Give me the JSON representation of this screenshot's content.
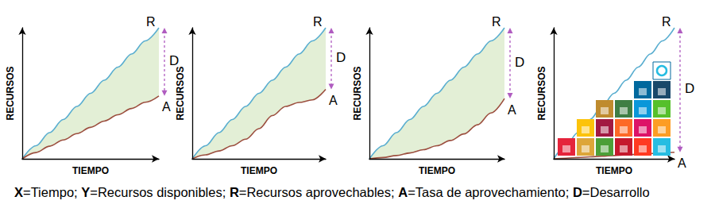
{
  "caption": [
    {
      "bold": "X",
      "text": "=Tiempo; "
    },
    {
      "bold": "Y",
      "text": "=Recursos disponibles; "
    },
    {
      "bold": "R",
      "text": "=Recursos aprovechables; "
    },
    {
      "bold": "A",
      "text": "=Tasa de aprovechamiento; "
    },
    {
      "bold": "D",
      "text": "=Desarrollo"
    }
  ],
  "chart_data": [
    {
      "type": "line",
      "x_label": "TIEMPO",
      "y_label": "RECURSOS",
      "xlim": [
        0,
        10
      ],
      "ylim": [
        0,
        10
      ],
      "tick_labels": false,
      "annotations": [
        "D"
      ],
      "x": [
        0,
        1,
        2,
        3,
        4,
        5,
        6,
        7,
        8,
        9,
        10
      ],
      "series": [
        {
          "name": "R",
          "color": "#5aaed0",
          "type": "area",
          "values": [
            0,
            1,
            2,
            3,
            4,
            5,
            6,
            7,
            8,
            9,
            10
          ]
        },
        {
          "name": "A",
          "color": "#9c4f3f",
          "type": "line",
          "values": [
            0,
            0.48,
            0.96,
            1.44,
            1.92,
            2.4,
            2.88,
            3.36,
            3.84,
            4.32,
            4.8
          ]
        }
      ]
    },
    {
      "type": "line",
      "x_label": "TIEMPO",
      "y_label": "RECURSOS",
      "xlim": [
        0,
        10
      ],
      "ylim": [
        0,
        10
      ],
      "tick_labels": false,
      "annotations": [
        "D"
      ],
      "x": [
        0,
        1,
        2,
        3,
        4,
        5,
        6,
        7,
        8,
        9,
        10
      ],
      "series": [
        {
          "name": "R",
          "color": "#5aaed0",
          "type": "area",
          "values": [
            0,
            1,
            2,
            3,
            4,
            5,
            6,
            7,
            8,
            9,
            10
          ]
        },
        {
          "name": "A",
          "color": "#9c4f3f",
          "type": "line",
          "values": [
            0,
            0.3,
            0.6,
            1.0,
            1.5,
            2.3,
            3.3,
            4.0,
            4.3,
            4.5,
            5.3
          ]
        }
      ]
    },
    {
      "type": "line",
      "x_label": "TIEMPO",
      "y_label": "RECURSOS",
      "xlim": [
        0,
        10
      ],
      "ylim": [
        0,
        10
      ],
      "tick_labels": false,
      "annotations": [
        "D"
      ],
      "x": [
        0,
        1,
        2,
        3,
        4,
        5,
        6,
        7,
        8,
        9,
        10
      ],
      "series": [
        {
          "name": "R",
          "color": "#5aaed0",
          "type": "area",
          "values": [
            0,
            1,
            2,
            3,
            4,
            5,
            6,
            7,
            8,
            9,
            10
          ]
        },
        {
          "name": "A",
          "color": "#9c4f3f",
          "type": "line",
          "values": [
            0,
            0.1,
            0.25,
            0.45,
            0.7,
            1.0,
            1.4,
            1.9,
            2.6,
            3.5,
            4.6
          ]
        }
      ]
    },
    {
      "type": "line",
      "x_label": "TIEMPO",
      "y_label": "RECURSOS",
      "xlim": [
        0,
        10
      ],
      "ylim": [
        0,
        10
      ],
      "tick_labels": false,
      "annotations": [
        "D"
      ],
      "x": [
        0,
        1,
        2,
        3,
        4,
        5,
        6,
        7,
        8,
        9,
        10
      ],
      "series": [
        {
          "name": "R",
          "color": "#5aaed0",
          "type": "line",
          "values": [
            0,
            1,
            2,
            3,
            4,
            5,
            6,
            7,
            8,
            9,
            10
          ]
        },
        {
          "name": "A",
          "color": "#9c4f3f",
          "type": "line",
          "values": [
            0,
            0.05,
            0.1,
            0.15,
            0.2,
            0.25,
            0.3,
            0.35,
            0.4,
            0.45,
            0.5
          ]
        }
      ]
    }
  ]
}
